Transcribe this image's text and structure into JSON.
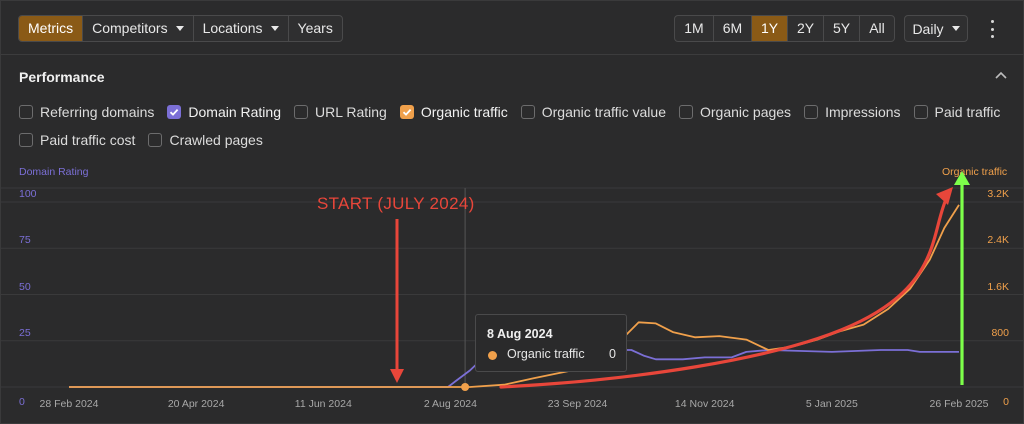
{
  "toolbar": {
    "left_segments": [
      {
        "label": "Metrics",
        "active": true,
        "dropdown": false
      },
      {
        "label": "Competitors",
        "active": false,
        "dropdown": true
      },
      {
        "label": "Locations",
        "active": false,
        "dropdown": true
      },
      {
        "label": "Years",
        "active": false,
        "dropdown": false
      }
    ],
    "ranges": [
      {
        "label": "1M",
        "active": false
      },
      {
        "label": "6M",
        "active": false
      },
      {
        "label": "1Y",
        "active": true
      },
      {
        "label": "2Y",
        "active": false
      },
      {
        "label": "5Y",
        "active": false
      },
      {
        "label": "All",
        "active": false
      }
    ],
    "interval": "Daily"
  },
  "performance": {
    "title": "Performance",
    "checkboxes": [
      {
        "label": "Referring domains",
        "checked": false
      },
      {
        "label": "Domain Rating",
        "checked": true,
        "color": "#7b6fd6"
      },
      {
        "label": "URL Rating",
        "checked": false
      },
      {
        "label": "Organic traffic",
        "checked": true,
        "color": "#f0a04b"
      },
      {
        "label": "Organic traffic value",
        "checked": false
      },
      {
        "label": "Organic pages",
        "checked": false
      },
      {
        "label": "Impressions",
        "checked": false
      },
      {
        "label": "Paid traffic",
        "checked": false
      },
      {
        "label": "Paid traffic cost",
        "checked": false
      },
      {
        "label": "Crawled pages",
        "checked": false
      }
    ]
  },
  "annotation": "START (JULY 2024)",
  "tooltip": {
    "date": "8 Aug 2024",
    "series": "Organic traffic",
    "value": "0"
  },
  "colors": {
    "domain_rating": "#7b6fd6",
    "organic_traffic": "#f0a04b",
    "arrow_red": "#e8463a",
    "arrow_green": "#7dff4a"
  },
  "chart_data": {
    "type": "line",
    "left_axis_label": "Domain Rating",
    "right_axis_label": "Organic traffic",
    "left_ticks": [
      "0",
      "25",
      "50",
      "75",
      "100"
    ],
    "right_ticks": [
      "0",
      "800",
      "1.6K",
      "2.4K",
      "3.2K"
    ],
    "x_ticks": [
      "28 Feb 2024",
      "20 Apr 2024",
      "11 Jun 2024",
      "2 Aug 2024",
      "23 Sep 2024",
      "14 Nov 2024",
      "5 Jan 2025",
      "26 Feb 2025"
    ],
    "y_left_range": [
      0,
      100
    ],
    "y_right_range": [
      0,
      3200
    ],
    "series": [
      {
        "name": "Domain Rating",
        "axis": "left",
        "x": [
          "2024-02-28",
          "2024-08-01",
          "2024-08-04",
          "2024-08-10",
          "2024-08-14",
          "2024-08-18",
          "2024-08-22",
          "2024-08-26",
          "2024-09-01",
          "2024-09-10",
          "2024-09-22",
          "2024-10-05",
          "2024-10-15",
          "2024-10-20",
          "2024-10-25",
          "2024-11-05",
          "2024-11-14",
          "2024-11-25",
          "2024-12-01",
          "2024-12-10",
          "2025-01-05",
          "2025-01-25",
          "2025-02-05",
          "2025-02-10",
          "2025-02-20",
          "2025-02-26"
        ],
        "y": [
          0,
          0,
          3,
          9,
          14,
          10,
          14,
          11,
          15,
          17,
          19,
          20,
          20,
          17,
          15,
          15,
          16,
          16,
          19,
          20,
          19,
          20,
          20,
          19,
          19,
          19
        ]
      },
      {
        "name": "Organic traffic",
        "axis": "right",
        "x": [
          "2024-02-28",
          "2024-08-10",
          "2024-08-24",
          "2024-09-05",
          "2024-09-20",
          "2024-10-01",
          "2024-10-10",
          "2024-10-18",
          "2024-10-25",
          "2024-11-01",
          "2024-11-10",
          "2024-11-20",
          "2024-12-01",
          "2024-12-10",
          "2024-12-20",
          "2024-12-30",
          "2025-01-08",
          "2025-01-18",
          "2025-01-28",
          "2025-02-06",
          "2025-02-14",
          "2025-02-20",
          "2025-02-26"
        ],
        "y": [
          0,
          0,
          40,
          150,
          280,
          520,
          780,
          1120,
          1100,
          950,
          860,
          880,
          820,
          640,
          700,
          820,
          960,
          1080,
          1350,
          1700,
          2200,
          2750,
          3150
        ]
      }
    ],
    "tooltip_point": {
      "x": "2024-08-08",
      "series": "Organic traffic",
      "value": 0
    }
  }
}
